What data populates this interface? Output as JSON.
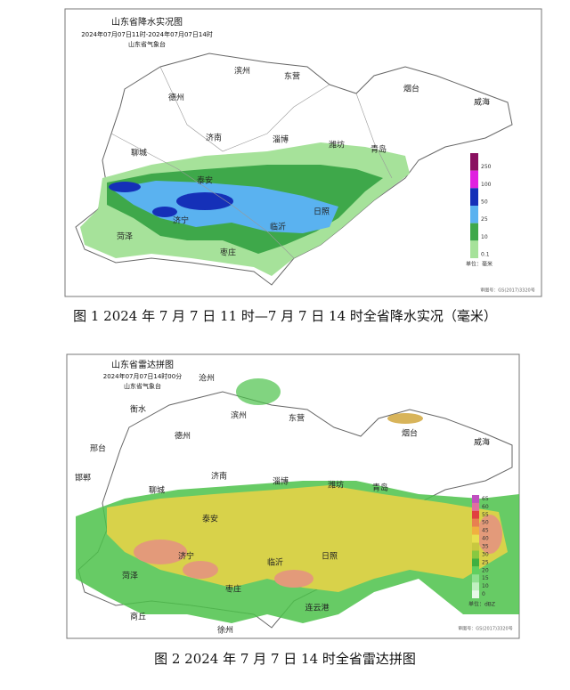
{
  "figure1": {
    "title": "山东省降水实况图",
    "time": "2024年07月07日11时-2024年07月07日14时",
    "source": "山东省气象台",
    "cities": [
      "滨州",
      "东营",
      "烟台",
      "威海",
      "德州",
      "济南",
      "淄博",
      "潍坊",
      "青岛",
      "聊城",
      "泰安",
      "济宁",
      "临沂",
      "日照",
      "菏泽",
      "枣庄"
    ],
    "legend": [
      "250",
      "100",
      "50",
      "25",
      "10",
      "0.1"
    ],
    "unit": "单位：毫米",
    "approval": "审图号：GS(2017)3320号",
    "caption": "图 1  2024 年 7 月 7 日 11 时—7 月 7 日 14 时全省降水实况（毫米）"
  },
  "figure2": {
    "title": "山东省雷达拼图",
    "time": "2024年07月07日14时00分",
    "source": "山东省气象台",
    "cities": [
      "沧州",
      "衡水",
      "德州",
      "滨州",
      "东营",
      "烟台",
      "威海",
      "邢台",
      "邯郸",
      "济南",
      "淄博",
      "潍坊",
      "青岛",
      "聊城",
      "泰安",
      "济宁",
      "临沂",
      "日照",
      "菏泽",
      "枣庄",
      "商丘",
      "徐州",
      "连云港"
    ],
    "legend": [
      "65",
      "60",
      "55",
      "50",
      "45",
      "40",
      "35",
      "30",
      "25",
      "20",
      "15",
      "10",
      "0"
    ],
    "unit": "单位：dBZ",
    "approval": "审图号：GS(2017)3320号",
    "caption": "图 2  2024 年 7 月 7 日 14 时全省雷达拼图"
  }
}
